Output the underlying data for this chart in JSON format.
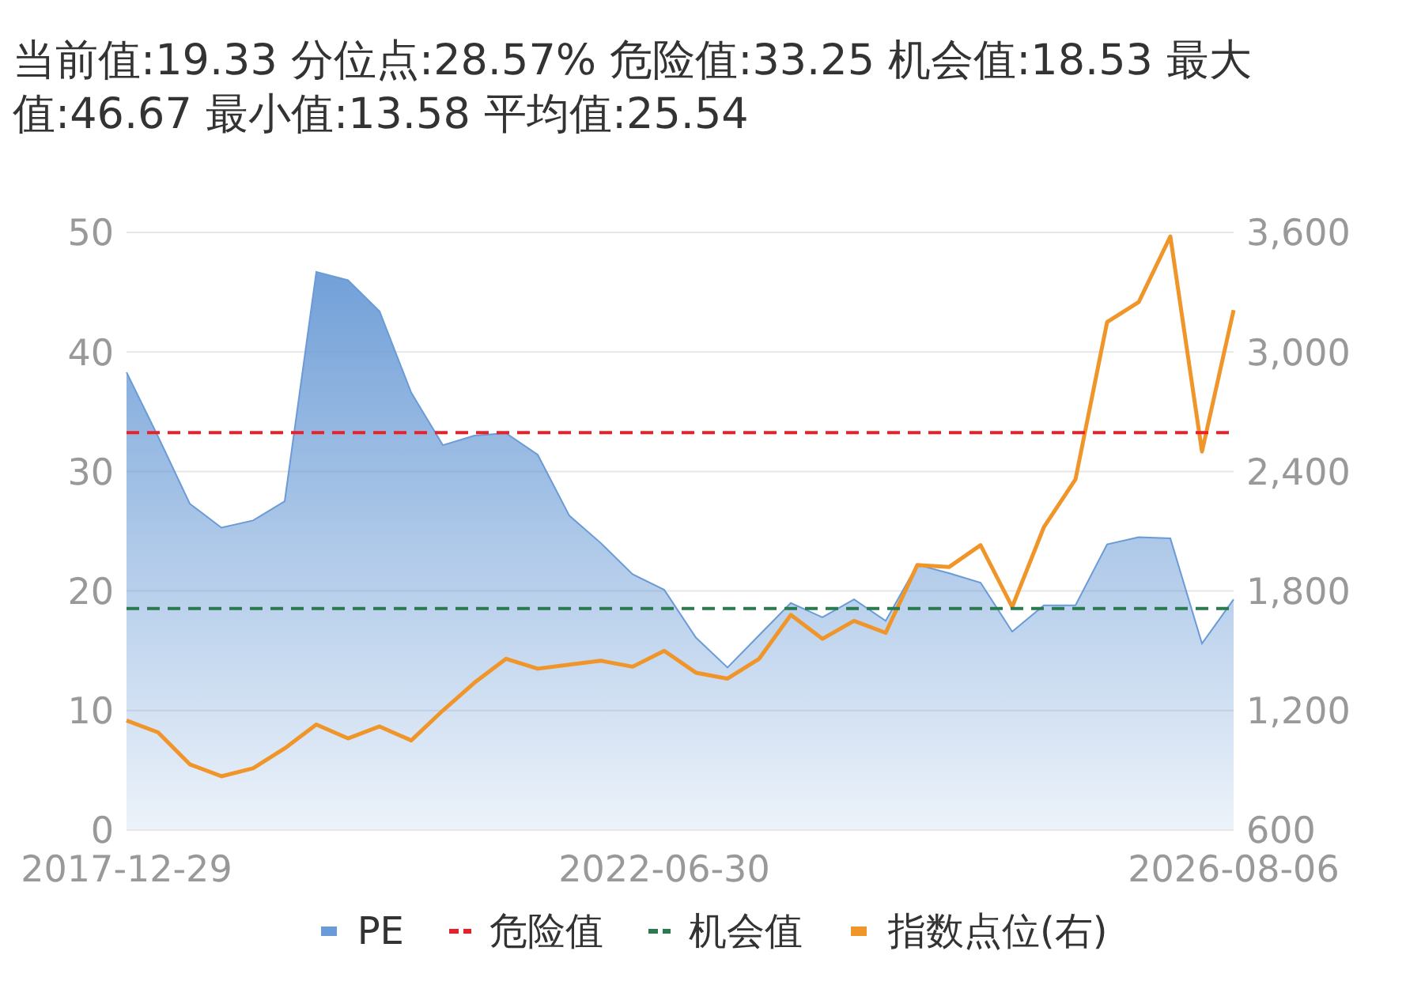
{
  "chart_data": {
    "type": "area",
    "title": "当前值:19.33 分位点:28.57% 危险值:33.25 机会值:18.53 最大值:46.67 最小值:13.58 平均值:25.54",
    "categories": [
      "2017-12-29",
      null,
      null,
      null,
      null,
      null,
      null,
      null,
      null,
      null,
      null,
      null,
      null,
      null,
      null,
      null,
      null,
      "2022-06-30",
      null,
      null,
      null,
      null,
      null,
      null,
      null,
      null,
      null,
      null,
      null,
      null,
      null,
      null,
      null,
      null,
      null,
      "2026-08-06"
    ],
    "series": [
      {
        "name": "PE",
        "color": "#6a9bd6",
        "values": [
          38.3,
          32.9,
          27.3,
          25.3,
          25.9,
          27.5,
          46.7,
          46.0,
          43.4,
          36.6,
          32.2,
          33.0,
          33.2,
          31.4,
          26.3,
          24.0,
          21.4,
          20.1,
          16.1,
          13.6,
          16.3,
          19.0,
          17.8,
          19.3,
          17.5,
          22.2,
          21.5,
          20.7,
          16.6,
          18.8,
          18.8,
          23.9,
          24.5,
          24.4,
          15.6,
          19.3
        ]
      },
      {
        "name": "指数点位(右)",
        "type": "line",
        "axis": "y2",
        "color": "#f0952a",
        "values": [
          1150,
          1090,
          930,
          870,
          910,
          1010,
          1130,
          1060,
          1120,
          1050,
          1200,
          1340,
          1460,
          1410,
          1430,
          1450,
          1420,
          1500,
          1390,
          1360,
          1460,
          1680,
          1560,
          1650,
          1590,
          1930,
          1920,
          2030,
          1720,
          2120,
          2360,
          3150,
          3250,
          3580,
          2500,
          3210
        ]
      }
    ],
    "ref_lines": [
      {
        "axis": "y",
        "value": 33.25,
        "label": "危险值",
        "color": "#e8202a",
        "line_style": "dashed"
      },
      {
        "axis": "y",
        "value": 18.53,
        "label": "机会值",
        "color": "#2a7a4f",
        "line_style": "dashed"
      }
    ],
    "ylim": [
      0,
      50
    ],
    "yticks": [
      0,
      10,
      20,
      30,
      40,
      50
    ],
    "y2lim": [
      600,
      3600
    ],
    "y2ticks": [
      {
        "value": 600,
        "label": "600"
      },
      {
        "value": 1200,
        "label": "1,200"
      },
      {
        "value": 1800,
        "label": "1,800"
      },
      {
        "value": 2400,
        "label": "2,400"
      },
      {
        "value": 3000,
        "label": "3,000"
      },
      {
        "value": 3600,
        "label": "3,600"
      }
    ],
    "grid": "y",
    "legend": "bottom",
    "marker": "none",
    "line_style": "solid"
  }
}
